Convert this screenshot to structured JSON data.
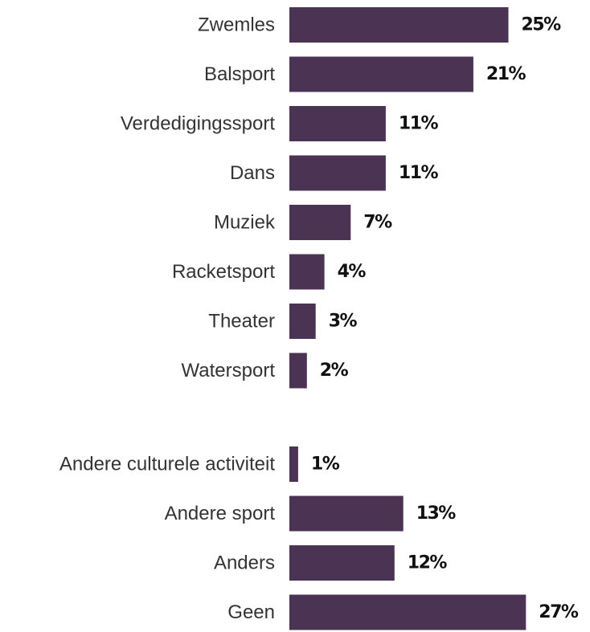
{
  "colors": {
    "bar": "#4a3353",
    "label": "#333333",
    "value": "#111111",
    "background": "#ffffff"
  },
  "chart_data": {
    "type": "bar",
    "orientation": "horizontal",
    "title": "",
    "xlabel": "",
    "ylabel": "",
    "grid": false,
    "legend": "none",
    "value_format": "percent",
    "groups": [
      {
        "categories": [
          "Zwemles",
          "Balsport",
          "Verdedigingssport",
          "Dans",
          "Muziek",
          "Racketsport",
          "Theater",
          "Watersport"
        ],
        "values": [
          25,
          21,
          11,
          11,
          7,
          4,
          3,
          2
        ]
      },
      {
        "categories": [
          "Andere culturele activiteit",
          "Andere sport",
          "Anders",
          "Geen"
        ],
        "values": [
          1,
          13,
          12,
          27
        ]
      }
    ]
  }
}
